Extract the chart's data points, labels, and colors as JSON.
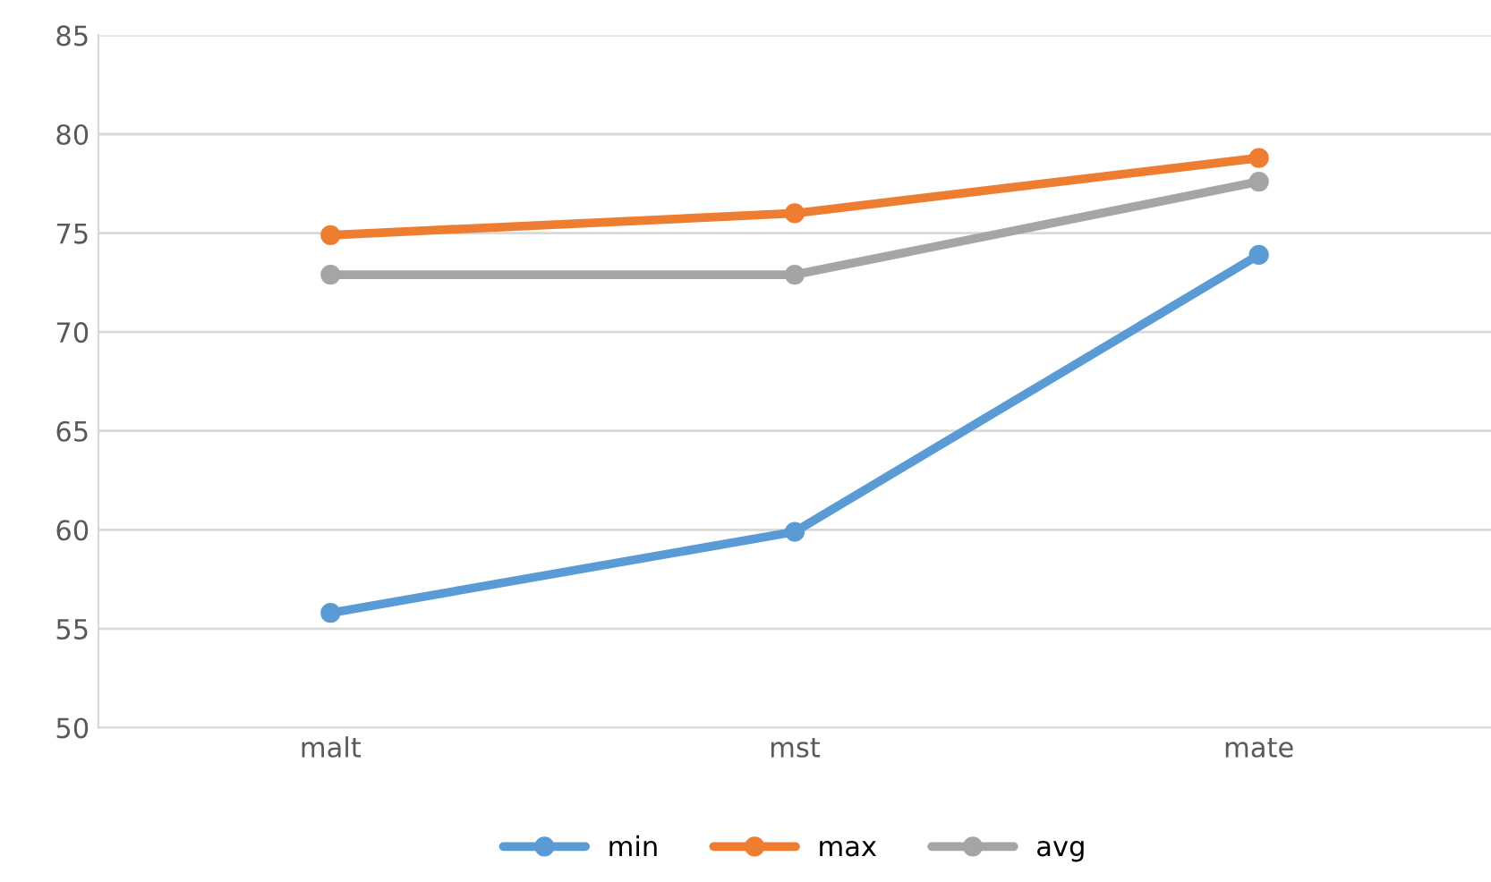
{
  "chart_data": {
    "type": "line",
    "categories": [
      "malt",
      "mst",
      "mate"
    ],
    "series": [
      {
        "name": "min",
        "color": "#5b9bd5",
        "values": [
          55.8,
          59.9,
          73.9
        ]
      },
      {
        "name": "max",
        "color": "#ed7d31",
        "values": [
          74.9,
          76.0,
          78.8
        ]
      },
      {
        "name": "avg",
        "color": "#a5a5a5",
        "values": [
          72.9,
          72.9,
          77.6
        ]
      }
    ],
    "ylim": [
      50,
      85
    ],
    "yticks": [
      50,
      55,
      60,
      65,
      70,
      75,
      80,
      85
    ],
    "grid": "y",
    "legend": "bottom",
    "marker": "circle",
    "line_style": "solid"
  }
}
